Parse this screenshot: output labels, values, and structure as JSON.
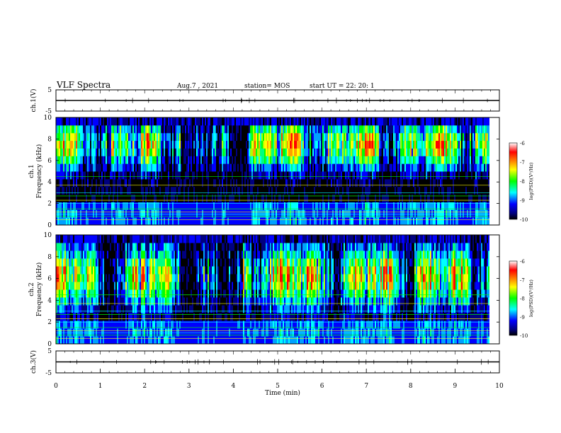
{
  "header": {
    "title": "VLF Spectra",
    "date": "Aug.7  , 2021",
    "station": "station= MOS",
    "start": "start  UT =   22: 20: 1"
  },
  "colorbar": {
    "label": "log(PSD)(V²/Hz)",
    "ticks": [
      "-6",
      "-7",
      "-8",
      "-9",
      "-10"
    ],
    "colors": [
      "#ffffff",
      "#ff0000",
      "#ffff00",
      "#00ff00",
      "#00ffff",
      "#0000ff",
      "#000080",
      "#000000"
    ]
  },
  "chart_data": [
    {
      "type": "line",
      "ylabel": "ch.1(V)",
      "xlabel": "",
      "xlim": [
        0,
        10
      ],
      "ylim": [
        -5,
        5
      ],
      "yticks": [
        "5",
        "-5"
      ],
      "x": [
        0,
        10
      ],
      "y": [
        0,
        0
      ]
    },
    {
      "type": "heatmap",
      "ylabel": "ch.1\nFrequency (kHz)",
      "xlim": [
        0,
        10
      ],
      "ylim": [
        0,
        10
      ],
      "yticks": [
        "0",
        "2",
        "4",
        "6",
        "8",
        "10"
      ],
      "value_range": [
        -10,
        -6
      ]
    },
    {
      "type": "heatmap",
      "ylabel": "ch.2\nFrequency (kHz)",
      "xlim": [
        0,
        10
      ],
      "ylim": [
        0,
        10
      ],
      "yticks": [
        "0",
        "2",
        "4",
        "6",
        "8",
        "10"
      ],
      "value_range": [
        -10,
        -6
      ]
    },
    {
      "type": "line",
      "ylabel": "ch.3(V)",
      "xlabel": "Time  (min)",
      "xlim": [
        0,
        10
      ],
      "ylim": [
        -5,
        5
      ],
      "yticks": [
        "5",
        "-5"
      ],
      "xticks": [
        "0",
        "1",
        "2",
        "3",
        "4",
        "5",
        "6",
        "7",
        "8",
        "9",
        "10"
      ],
      "x": [
        0,
        10
      ],
      "y": [
        0,
        0
      ]
    }
  ]
}
